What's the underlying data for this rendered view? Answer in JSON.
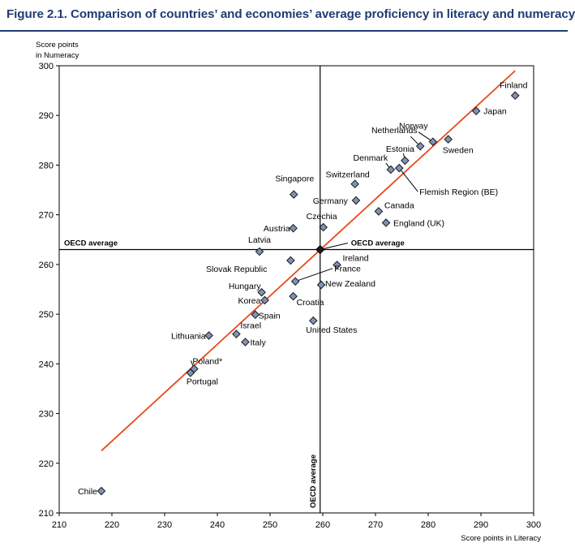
{
  "figure_title": "Figure 2.1. Comparison of countries’ and economies’ average proficiency in literacy and numeracy",
  "colors": {
    "title": "#1f3c73",
    "marker_fill": "#7f92b7",
    "marker_stroke": "#1a1a1a",
    "trend_line": "#e8491c",
    "highlight_label": "#1f3c73"
  },
  "chart_data": {
    "type": "scatter",
    "title": "Figure 2.1. Comparison of countries’ and economies’ average proficiency in literacy and numeracy",
    "xlabel": "Score points in Literacy",
    "ylabel": [
      "Score points",
      "in Numeracy"
    ],
    "xlim": [
      210,
      300
    ],
    "ylim": [
      210,
      300
    ],
    "xticks": [
      210,
      220,
      230,
      240,
      250,
      260,
      270,
      280,
      290,
      300
    ],
    "yticks": [
      210,
      220,
      230,
      240,
      250,
      260,
      270,
      280,
      290,
      300
    ],
    "grid": false,
    "reference_lines": {
      "x": {
        "value": 259.5,
        "label": "OECD average"
      },
      "y": {
        "value": 263,
        "label": "OECD average"
      }
    },
    "oecd_average_point": {
      "x": 259.5,
      "y": 263,
      "label": "OECD average"
    },
    "trend_line": {
      "x1": 218,
      "y1": 222.5,
      "x2": 296.5,
      "y2": 299
    },
    "points": [
      {
        "label": "Finland",
        "x": 296.5,
        "y": 294
      },
      {
        "label": "Japan",
        "x": 289.1,
        "y": 290.9
      },
      {
        "label": "Norway",
        "x": 280.9,
        "y": 284.7
      },
      {
        "label": "Netherlands",
        "x": 278.5,
        "y": 283.8
      },
      {
        "label": "Sweden",
        "x": 283.8,
        "y": 285.2
      },
      {
        "label": "Estonia",
        "x": 275.6,
        "y": 280.9
      },
      {
        "label": "Denmark",
        "x": 272.9,
        "y": 279.1
      },
      {
        "label": "Flemish Region (BE)",
        "x": 274.5,
        "y": 279.4,
        "highlight": true
      },
      {
        "label": "Switzerland",
        "x": 266.1,
        "y": 276.2
      },
      {
        "label": "Singapore",
        "x": 254.5,
        "y": 274.1
      },
      {
        "label": "Germany",
        "x": 266.3,
        "y": 272.9
      },
      {
        "label": "Canada",
        "x": 270.6,
        "y": 270.7
      },
      {
        "label": "England (UK)",
        "x": 272.0,
        "y": 268.4,
        "highlight": true
      },
      {
        "label": "Austria",
        "x": 254.4,
        "y": 267.3
      },
      {
        "label": "Czechia",
        "x": 260.1,
        "y": 267.5
      },
      {
        "label": "Latvia",
        "x": 248.0,
        "y": 262.6
      },
      {
        "label": "Ireland",
        "x": 262.7,
        "y": 259.9
      },
      {
        "label": "Slovak Republic",
        "x": 253.9,
        "y": 260.8
      },
      {
        "label": "France",
        "x": 254.8,
        "y": 256.6
      },
      {
        "label": "New Zealand",
        "x": 259.7,
        "y": 255.9
      },
      {
        "label": "Hungary",
        "x": 248.4,
        "y": 254.4
      },
      {
        "label": "Korea",
        "x": 249.0,
        "y": 252.8
      },
      {
        "label": "Croatia",
        "x": 254.4,
        "y": 253.6
      },
      {
        "label": "Spain",
        "x": 247.2,
        "y": 249.9
      },
      {
        "label": "United States",
        "x": 258.2,
        "y": 248.7
      },
      {
        "label": "Lithuania",
        "x": 238.4,
        "y": 245.7
      },
      {
        "label": "Israel",
        "x": 243.6,
        "y": 246.0
      },
      {
        "label": "Italy",
        "x": 245.3,
        "y": 244.4
      },
      {
        "label": "Poland*",
        "x": 235.6,
        "y": 239.0
      },
      {
        "label": "Portugal",
        "x": 234.9,
        "y": 238.2
      },
      {
        "label": "Chile",
        "x": 218.0,
        "y": 214.4
      }
    ]
  }
}
